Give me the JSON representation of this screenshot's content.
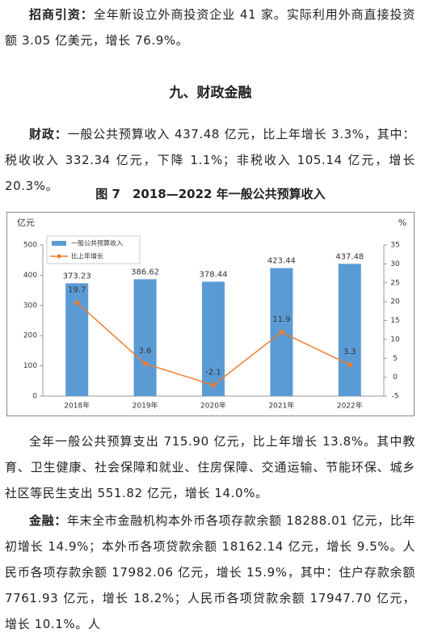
{
  "para1": {
    "label": "招商引资：",
    "text": "全年新设立外商投资企业 41 家。实际利用外商直接投资额 3.05 亿美元，增长 76.9%。"
  },
  "section_title": "九、财政金融",
  "para2": {
    "label": "财政：",
    "text": "一般公共预算收入 437.48 亿元，比上年增长 3.3%，其中：税收收入 332.34 亿元，下降 1.1%；非税收入 105.14 亿元，增长 20.3%。"
  },
  "figure_caption": "图 7　2018—2022 年一般公共预算收入",
  "chart_data": {
    "type": "bar",
    "y_label": "亿元",
    "y2_label": "%",
    "categories": [
      "2018年",
      "2019年",
      "2020年",
      "2021年",
      "2022年"
    ],
    "series": [
      {
        "name": "一般公共预算收入",
        "color": "#5b9bd5",
        "type": "bar",
        "values": [
          373.23,
          386.62,
          378.44,
          423.44,
          437.48
        ]
      },
      {
        "name": "比上年增长",
        "color": "#ed7d31",
        "type": "line",
        "axis": "y2",
        "values": [
          19.7,
          3.6,
          -2.1,
          11.9,
          3.3
        ]
      }
    ],
    "ylim": [
      0,
      500
    ],
    "yticks": [
      0,
      100,
      200,
      300,
      400,
      500
    ],
    "y2lim": [
      -5,
      35
    ],
    "y2ticks": [
      -5,
      0,
      5,
      10,
      15,
      20,
      25,
      30,
      35
    ],
    "grid": false,
    "legend": "upper left"
  },
  "para3": {
    "text": "全年一般公共预算支出 715.90 亿元，比上年增长 13.8%。其中教育、卫生健康、社会保障和就业、住房保障、交通运输、节能环保、城乡社区等民生支出 551.82 亿元，增长 14.0%。"
  },
  "para4": {
    "label": "金融：",
    "text": "年末全市金融机构本外币各项存款余额 18288.01 亿元，比年初增长 14.9%；本外币各项贷款余额 18162.14 亿元，增长 9.5%。人民币各项存款余额 17982.06 亿元，增长 15.9%，其中：住户存款余额 7761.93 亿元，增长 18.2%；人民币各项贷款余额 17947.70 亿元，增长 10.1%。人"
  }
}
